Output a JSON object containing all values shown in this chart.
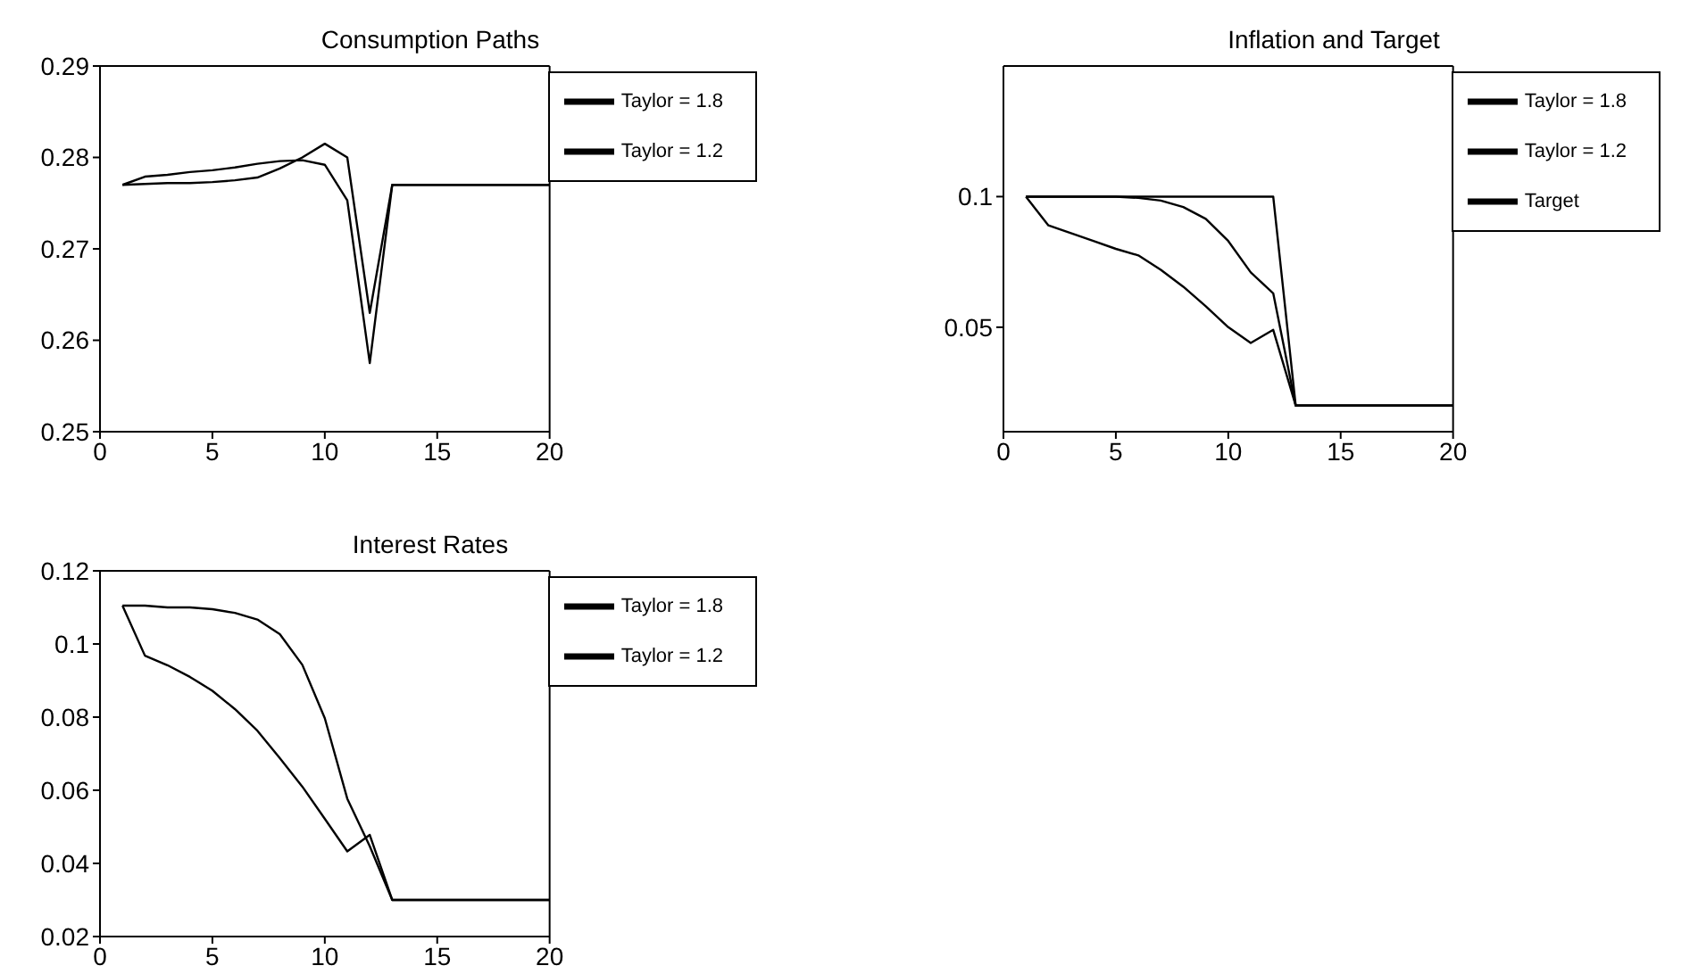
{
  "chart_data": [
    {
      "type": "line",
      "title": "Consumption Paths",
      "x": [
        1,
        2,
        3,
        4,
        5,
        6,
        7,
        8,
        9,
        10,
        11,
        12,
        13,
        14,
        15,
        16,
        17,
        18,
        19,
        20
      ],
      "series": [
        {
          "name": "Taylor = 1.8",
          "color": "#000000",
          "values": [
            0.277,
            0.2771,
            0.2772,
            0.2772,
            0.2773,
            0.2775,
            0.2778,
            0.2788,
            0.28,
            0.2815,
            0.28,
            0.263,
            0.277,
            0.277,
            0.277,
            0.277,
            0.277,
            0.277,
            0.277,
            0.277
          ]
        },
        {
          "name": "Taylor = 1.2",
          "color": "#000000",
          "values": [
            0.277,
            0.2779,
            0.2781,
            0.2784,
            0.2786,
            0.2789,
            0.2793,
            0.2796,
            0.2797,
            0.2792,
            0.2753,
            0.2575,
            0.277,
            0.277,
            0.277,
            0.277,
            0.277,
            0.277,
            0.277,
            0.277
          ]
        }
      ],
      "xlim": [
        0,
        20
      ],
      "xticks": [
        0,
        5,
        10,
        15,
        20
      ],
      "ylim": [
        0.25,
        0.29
      ],
      "yticks": [
        0.25,
        0.26,
        0.27,
        0.28,
        0.29
      ],
      "legend": "top right",
      "grid": false
    },
    {
      "type": "line",
      "title": "Inflation and Target",
      "x": [
        1,
        2,
        3,
        4,
        5,
        6,
        7,
        8,
        9,
        10,
        11,
        12,
        13,
        14,
        15,
        16,
        17,
        18,
        19,
        20
      ],
      "series": [
        {
          "name": "Taylor = 1.8",
          "color": "#000000",
          "values": [
            0.1,
            0.089,
            0.086,
            0.083,
            0.08,
            0.0775,
            0.072,
            0.0655,
            0.058,
            0.05,
            0.044,
            0.049,
            0.02,
            0.02,
            0.02,
            0.02,
            0.02,
            0.02,
            0.02,
            0.02
          ]
        },
        {
          "name": "Taylor = 1.2",
          "color": "#000000",
          "values": [
            0.1,
            0.1,
            0.1,
            0.1,
            0.1,
            0.0995,
            0.0985,
            0.096,
            0.0915,
            0.083,
            0.071,
            0.063,
            0.02,
            0.02,
            0.02,
            0.02,
            0.02,
            0.02,
            0.02,
            0.02
          ]
        },
        {
          "name": "Target",
          "color": "#000000",
          "values": [
            0.1,
            0.1,
            0.1,
            0.1,
            0.1,
            0.1,
            0.1,
            0.1,
            0.1,
            0.1,
            0.1,
            0.1,
            0.02,
            0.02,
            0.02,
            0.02,
            0.02,
            0.02,
            0.02,
            0.02
          ]
        }
      ],
      "xlim": [
        0,
        20
      ],
      "xticks": [
        0,
        5,
        10,
        15,
        20
      ],
      "ylim": [
        0.01,
        0.15
      ],
      "yticks": [
        0.05,
        0.1
      ],
      "legend": "top right",
      "grid": false
    },
    {
      "type": "line",
      "title": "Interest Rates",
      "x": [
        1,
        2,
        3,
        4,
        5,
        6,
        7,
        8,
        9,
        10,
        11,
        12,
        13,
        14,
        15,
        16,
        17,
        18,
        19,
        20
      ],
      "series": [
        {
          "name": "Taylor = 1.8",
          "color": "#000000",
          "values": [
            0.1105,
            0.0968,
            0.0942,
            0.091,
            0.0872,
            0.0822,
            0.0763,
            0.0688,
            0.061,
            0.0522,
            0.0433,
            0.0478,
            0.03,
            0.03,
            0.03,
            0.03,
            0.03,
            0.03,
            0.03,
            0.03
          ]
        },
        {
          "name": "Taylor = 1.2",
          "color": "#000000",
          "values": [
            0.1105,
            0.1105,
            0.11,
            0.11,
            0.1095,
            0.1085,
            0.1067,
            0.1027,
            0.0943,
            0.0797,
            0.0577,
            0.0447,
            0.03,
            0.03,
            0.03,
            0.03,
            0.03,
            0.03,
            0.03,
            0.03
          ]
        }
      ],
      "xlim": [
        0,
        20
      ],
      "xticks": [
        0,
        5,
        10,
        15,
        20
      ],
      "ylim": [
        0.02,
        0.12
      ],
      "yticks": [
        0.02,
        0.04,
        0.06,
        0.08,
        0.1,
        0.12
      ],
      "legend": "top right",
      "grid": false
    }
  ]
}
